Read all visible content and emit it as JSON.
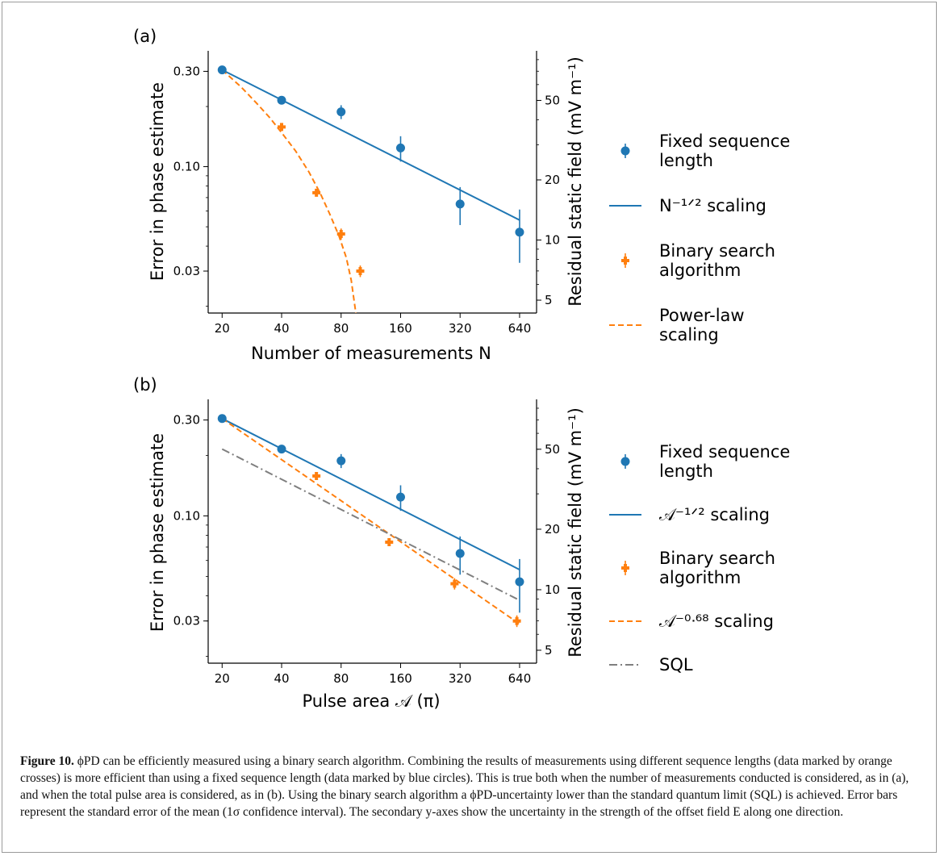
{
  "chart_data": [
    {
      "type": "scatter",
      "panel_label": "(a)",
      "xlabel": "Number of measurements N",
      "ylabel": "Error in phase estimate",
      "ylabel_right": "Residual static field (mV m⁻¹)",
      "x_scale": "log2",
      "y_scale": "log",
      "xlim": [
        17,
        780
      ],
      "ylim": [
        0.0185,
        0.38
      ],
      "x_ticks": [
        20,
        40,
        80,
        160,
        320,
        640
      ],
      "y_ticks": [
        0.03,
        0.1,
        0.3
      ],
      "y_tick_labels": [
        "0.03",
        "0.10",
        "0.30"
      ],
      "y_right_ticks": [
        5,
        10,
        20,
        50
      ],
      "y_right_factor": 233,
      "series": [
        {
          "name": "Fixed sequence length",
          "kind": "points",
          "marker": "circle",
          "color": "#1f77b4",
          "x": [
            20,
            40,
            80,
            160,
            320,
            640
          ],
          "y": [
            0.305,
            0.215,
            0.188,
            0.124,
            0.065,
            0.047
          ],
          "yerr": [
            0.005,
            0.008,
            0.015,
            0.018,
            0.014,
            0.014
          ]
        },
        {
          "name": "N^-1/2 scaling",
          "kind": "line",
          "style": "solid",
          "color": "#1f77b4",
          "x": [
            20,
            640
          ],
          "y": [
            0.305,
            0.054
          ]
        },
        {
          "name": "Binary search algorithm",
          "kind": "points",
          "marker": "plus",
          "color": "#ff7f0e",
          "x": [
            40,
            60,
            80,
            100
          ],
          "y": [
            0.158,
            0.074,
            0.046,
            0.03
          ],
          "yerr": [
            0.003,
            0.003,
            0.003,
            0.002
          ]
        },
        {
          "name": "Power-law scaling",
          "kind": "line",
          "style": "dashed",
          "color": "#ff7f0e",
          "x": [
            20,
            25,
            30,
            35,
            40,
            47,
            55,
            63,
            70,
            78,
            85,
            90,
            95
          ],
          "y": [
            0.305,
            0.25,
            0.207,
            0.175,
            0.148,
            0.12,
            0.094,
            0.073,
            0.058,
            0.045,
            0.035,
            0.027,
            0.0185
          ]
        }
      ],
      "legend": {
        "position": "right",
        "entries": [
          {
            "key": "circle",
            "color": "#1f77b4",
            "lines": [
              "Fixed sequence",
              "length"
            ]
          },
          {
            "key": "solid",
            "color": "#1f77b4",
            "lines": [
              "N⁻¹ᐟ² scaling"
            ]
          },
          {
            "key": "plus",
            "color": "#ff7f0e",
            "lines": [
              "Binary search",
              "algorithm"
            ]
          },
          {
            "key": "dashed",
            "color": "#ff7f0e",
            "lines": [
              "Power-law",
              "scaling"
            ]
          }
        ]
      }
    },
    {
      "type": "scatter",
      "panel_label": "(b)",
      "xlabel": "Pulse area 𝒜 (π)",
      "ylabel": "Error in phase estimate",
      "ylabel_right": "Residual static field (mV m⁻¹)",
      "x_scale": "log2",
      "y_scale": "log",
      "xlim": [
        17,
        780
      ],
      "ylim": [
        0.0185,
        0.38
      ],
      "x_ticks": [
        20,
        40,
        80,
        160,
        320,
        640
      ],
      "y_ticks": [
        0.03,
        0.1,
        0.3
      ],
      "y_tick_labels": [
        "0.03",
        "0.10",
        "0.30"
      ],
      "y_right_ticks": [
        5,
        10,
        20,
        50
      ],
      "y_right_factor": 233,
      "series": [
        {
          "name": "Fixed sequence length",
          "kind": "points",
          "marker": "circle",
          "color": "#1f77b4",
          "x": [
            20,
            40,
            80,
            160,
            320,
            640
          ],
          "y": [
            0.305,
            0.215,
            0.188,
            0.124,
            0.065,
            0.047
          ],
          "yerr": [
            0.005,
            0.008,
            0.015,
            0.018,
            0.014,
            0.014
          ]
        },
        {
          "name": "𝒜^-1/2 scaling",
          "kind": "line",
          "style": "solid",
          "color": "#1f77b4",
          "x": [
            20,
            640
          ],
          "y": [
            0.305,
            0.054
          ]
        },
        {
          "name": "Binary search algorithm",
          "kind": "points",
          "marker": "plus",
          "color": "#ff7f0e",
          "x": [
            60,
            140,
            300,
            620
          ],
          "y": [
            0.158,
            0.074,
            0.046,
            0.03
          ],
          "yerr": [
            0.003,
            0.003,
            0.003,
            0.002
          ]
        },
        {
          "name": "𝒜^-0.68 scaling",
          "kind": "line",
          "style": "dashed",
          "color": "#ff7f0e",
          "x": [
            20,
            640
          ],
          "y": [
            0.305,
            0.029
          ]
        },
        {
          "name": "SQL",
          "kind": "line",
          "style": "dashdot",
          "color": "#7f7f7f",
          "x": [
            20,
            640
          ],
          "y": [
            0.215,
            0.038
          ]
        }
      ],
      "legend": {
        "position": "right",
        "entries": [
          {
            "key": "circle",
            "color": "#1f77b4",
            "lines": [
              "Fixed sequence",
              "length"
            ]
          },
          {
            "key": "solid",
            "color": "#1f77b4",
            "lines": [
              "𝒜⁻¹ᐟ² scaling"
            ]
          },
          {
            "key": "plus",
            "color": "#ff7f0e",
            "lines": [
              "Binary search",
              "algorithm"
            ]
          },
          {
            "key": "dashed",
            "color": "#ff7f0e",
            "lines": [
              "𝒜⁻⁰ᐧ⁶⁸ scaling"
            ]
          },
          {
            "key": "dashdot",
            "color": "#7f7f7f",
            "lines": [
              "SQL"
            ]
          }
        ]
      }
    }
  ],
  "caption": {
    "label": "Figure 10.",
    "text": "ϕPD can be efficiently measured using a binary search algorithm. Combining the results of measurements using different sequence lengths (data marked by orange crosses) is more efficient than using a fixed sequence length (data marked by blue circles). This is true both when the number of measurements conducted is considered, as in (a), and when the total pulse area is considered, as in (b). Using the binary search algorithm a ϕPD-uncertainty lower than the standard quantum limit (SQL) is achieved. Error bars represent the standard error of the mean (1σ confidence interval). The secondary y-axes show the uncertainty in the strength of the offset field E along one direction."
  }
}
